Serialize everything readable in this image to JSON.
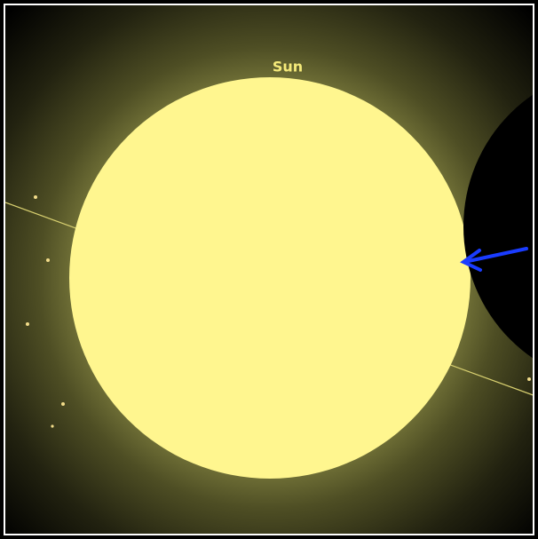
{
  "label": "Sun"
}
